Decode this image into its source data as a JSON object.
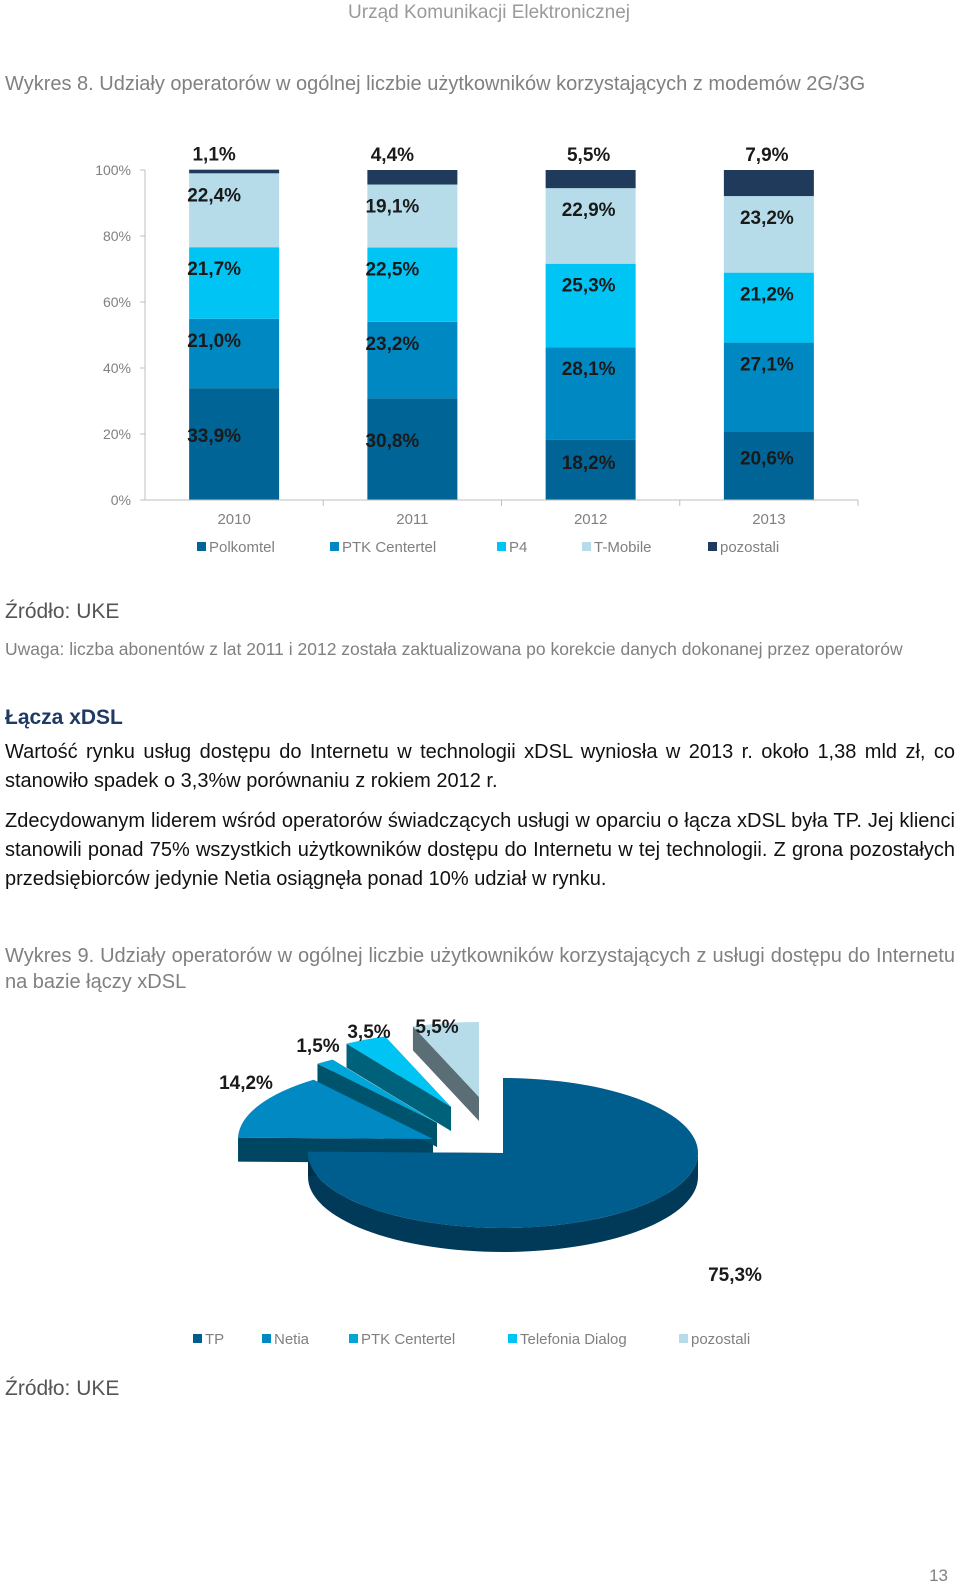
{
  "header": {
    "org": "Urząd Komunikacji Elektronicznej"
  },
  "caption1": "Wykres 8. Udziały operatorów w ogólnej liczbie użytkowników korzystających z modemów 2G/3G",
  "source1": "Źródło: UKE",
  "note": "Uwaga: liczba abonentów z lat 2011 i 2012 została zaktualizowana po korekcie danych dokonanej przez operatorów",
  "section_title": "Łącza xDSL",
  "paragraph1": "Wartość rynku usług dostępu do Internetu w technologii xDSL wyniosła w 2013 r. około 1,38 mld zł, co stanowiło spadek o 3,3%w porównaniu z rokiem 2012 r.",
  "paragraph2": "Zdecydowanym liderem wśród operatorów świadczących usługi w oparciu o łącza xDSL była TP. Jej klienci stanowili ponad 75% wszystkich użytkowników dostępu do Internetu w tej technologii. Z grona pozostałych przedsiębiorców jedynie Netia osiągnęła ponad 10% udział w rynku.",
  "caption2": "Wykres 9. Udziały operatorów w ogólnej liczbie użytkowników korzystających z usługi dostępu do Internetu na bazie łączy xDSL",
  "source2": "Źródło: UKE",
  "page_number": "13",
  "chart_data": [
    {
      "type": "bar",
      "stacked": true,
      "categories": [
        "2010",
        "2011",
        "2012",
        "2013"
      ],
      "yticks": [
        "0%",
        "20%",
        "40%",
        "60%",
        "80%",
        "100%"
      ],
      "ylim": [
        0,
        100
      ],
      "legend_position": "bottom",
      "series": [
        {
          "name": "Polkomtel",
          "color": "#006496",
          "values": [
            33.9,
            30.8,
            18.2,
            20.6
          ],
          "labels": [
            "33,9%",
            "30,8%",
            "18,2%",
            "20,6%"
          ]
        },
        {
          "name": "PTK Centertel",
          "color": "#0088c2",
          "values": [
            21.0,
            23.2,
            28.1,
            27.1
          ],
          "labels": [
            "21,0%",
            "23,2%",
            "28,1%",
            "27,1%"
          ]
        },
        {
          "name": "P4",
          "color": "#00c4f4",
          "values": [
            21.7,
            22.5,
            25.3,
            21.2
          ],
          "labels": [
            "21,7%",
            "22,5%",
            "25,3%",
            "21,2%"
          ]
        },
        {
          "name": "T-Mobile",
          "color": "#b6dcea",
          "values": [
            22.4,
            19.1,
            22.9,
            23.2
          ],
          "labels": [
            "22,4%",
            "19,1%",
            "22,9%",
            "23,2%"
          ]
        },
        {
          "name": "pozostali",
          "color": "#1f3a5a",
          "values": [
            1.1,
            4.4,
            5.5,
            7.9
          ],
          "labels": [
            "1,1%",
            "4,4%",
            "5,5%",
            "7,9%"
          ]
        }
      ]
    },
    {
      "type": "pie",
      "style": "3d",
      "legend_position": "bottom",
      "slices": [
        {
          "name": "TP",
          "value": 75.3,
          "label": "75,3%",
          "color": "#005e8e"
        },
        {
          "name": "Netia",
          "value": 14.2,
          "label": "14,2%",
          "color": "#0089c2"
        },
        {
          "name": "PTK Centertel",
          "value": 1.5,
          "label": "1,5%",
          "color": "#00a6d8"
        },
        {
          "name": "Telefonia Dialog",
          "value": 3.5,
          "label": "3,5%",
          "color": "#00c4f4"
        },
        {
          "name": "pozostali",
          "value": 5.5,
          "label": "5,5%",
          "color": "#b6dcea"
        }
      ]
    }
  ]
}
